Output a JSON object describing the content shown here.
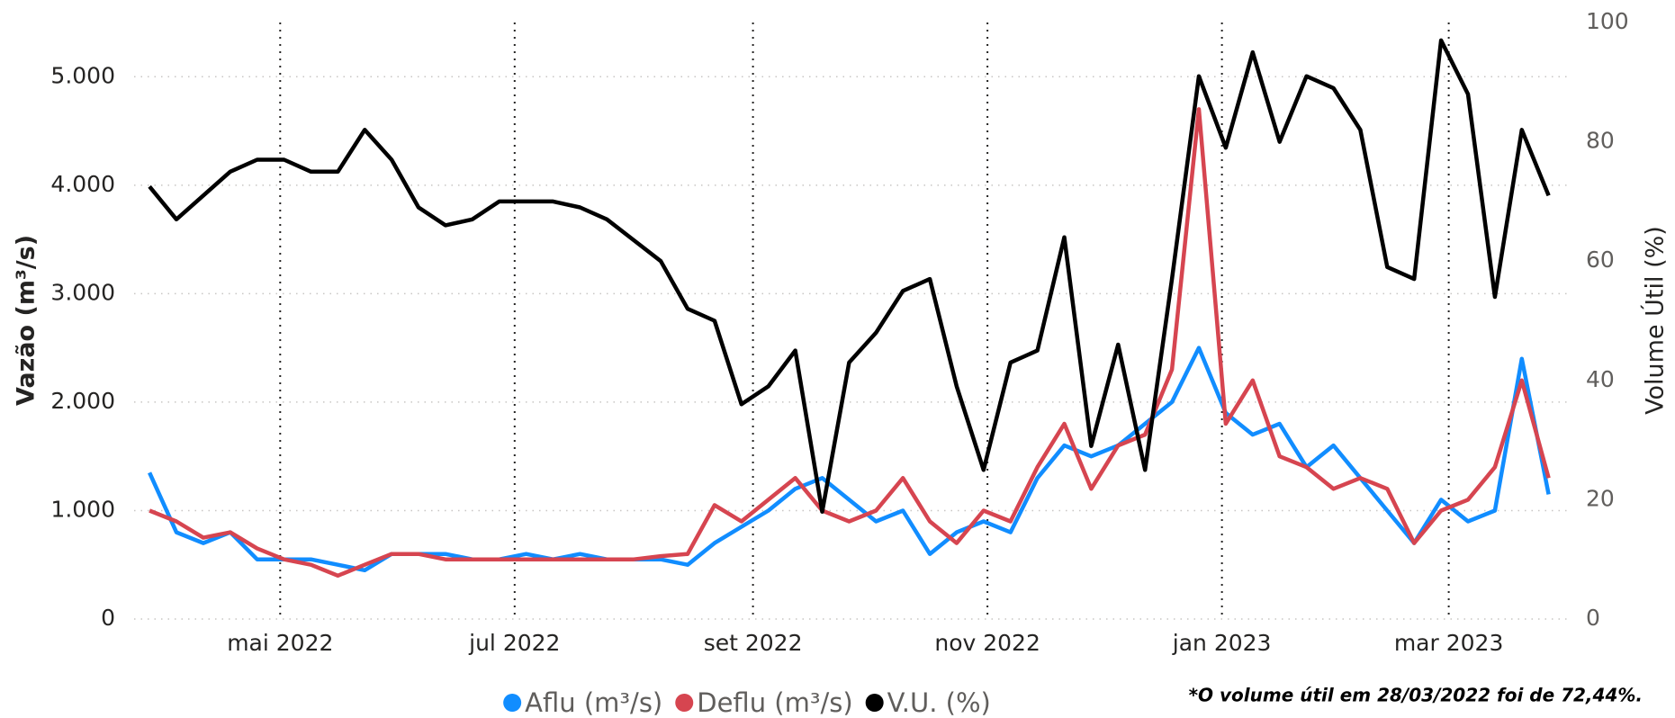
{
  "chart_data": {
    "type": "line",
    "y_label": "Vazão (m³/s)",
    "y2_label": "Volume Útil (%)",
    "annotation": "*O volume útil em 28/03/2022 foi de 72,44%.",
    "x": [
      "2022-03-28",
      "2022-04-04",
      "2022-04-11",
      "2022-04-18",
      "2022-04-25",
      "2022-05-02",
      "2022-05-09",
      "2022-05-16",
      "2022-05-23",
      "2022-05-30",
      "2022-06-06",
      "2022-06-13",
      "2022-06-20",
      "2022-06-27",
      "2022-07-04",
      "2022-07-11",
      "2022-07-18",
      "2022-07-25",
      "2022-08-01",
      "2022-08-08",
      "2022-08-15",
      "2022-08-22",
      "2022-08-29",
      "2022-09-05",
      "2022-09-12",
      "2022-09-19",
      "2022-09-26",
      "2022-10-03",
      "2022-10-10",
      "2022-10-17",
      "2022-10-24",
      "2022-10-31",
      "2022-11-07",
      "2022-11-14",
      "2022-11-21",
      "2022-11-28",
      "2022-12-05",
      "2022-12-12",
      "2022-12-19",
      "2022-12-26",
      "2023-01-02",
      "2023-01-09",
      "2023-01-16",
      "2023-01-23",
      "2023-01-30",
      "2023-02-06",
      "2023-02-13",
      "2023-02-20",
      "2023-02-27",
      "2023-03-06",
      "2023-03-13",
      "2023-03-20",
      "2023-03-27"
    ],
    "series": [
      {
        "name": "Aflu (m³/s)",
        "color": "#118dff",
        "values": [
          1350,
          800,
          700,
          800,
          550,
          550,
          550,
          500,
          450,
          600,
          600,
          600,
          550,
          550,
          600,
          550,
          600,
          550,
          550,
          550,
          500,
          700,
          850,
          1000,
          1200,
          1300,
          1100,
          900,
          1000,
          600,
          800,
          900,
          800,
          1300,
          1600,
          1500,
          1600,
          1800,
          2000,
          2500,
          1900,
          1700,
          1800,
          1400,
          1600,
          1300,
          1000,
          700,
          1100,
          900,
          1000,
          2400,
          1150
        ]
      },
      {
        "name": "Deflu (m³/s)",
        "color": "#d64550",
        "values": [
          1000,
          900,
          750,
          800,
          650,
          550,
          500,
          400,
          500,
          600,
          600,
          550,
          550,
          550,
          550,
          550,
          550,
          550,
          550,
          580,
          600,
          1050,
          900,
          1100,
          1300,
          1000,
          900,
          1000,
          1300,
          900,
          700,
          1000,
          900,
          1400,
          1800,
          1200,
          1600,
          1700,
          2300,
          4700,
          1800,
          2200,
          1500,
          1400,
          1200,
          1300,
          1200,
          700,
          1000,
          1100,
          1400,
          2200,
          1300
        ]
      },
      {
        "name": "V.U. (%)",
        "color": "#000000",
        "axis": "y2",
        "values": [
          72.5,
          67,
          71,
          75,
          77,
          77,
          75,
          75,
          82,
          77,
          69,
          66,
          67,
          70,
          70,
          70,
          69,
          67,
          63.5,
          60,
          52,
          50,
          36,
          39,
          45,
          18,
          43,
          48,
          55,
          57,
          39,
          25,
          43,
          45,
          64,
          29,
          46,
          25,
          57,
          91,
          79,
          95,
          80,
          91,
          89,
          82,
          59,
          57,
          97,
          88,
          54,
          82,
          71
        ]
      }
    ],
    "xlim": [
      "2022-03-24",
      "2023-04-01"
    ],
    "xticks": [
      {
        "value": "2022-05-01",
        "label": "mai 2022"
      },
      {
        "value": "2022-07-01",
        "label": "jul 2022"
      },
      {
        "value": "2022-09-01",
        "label": "set 2022"
      },
      {
        "value": "2022-11-01",
        "label": "nov 2022"
      },
      {
        "value": "2023-01-01",
        "label": "jan 2023"
      },
      {
        "value": "2023-03-01",
        "label": "mar 2023"
      }
    ],
    "ylim": [
      0,
      5500
    ],
    "yticks": [
      0,
      {
        "value": 1000,
        "label": "1.000"
      },
      {
        "value": 2000,
        "label": "2.000"
      },
      {
        "value": 3000,
        "label": "3.000"
      },
      {
        "value": 4000,
        "label": "4.000"
      },
      {
        "value": 5000,
        "label": "5.000"
      }
    ],
    "y2lim": [
      0,
      100
    ],
    "y2ticks": [
      0,
      20,
      40,
      60,
      80,
      100
    ],
    "grid": true,
    "legend": "bottom"
  }
}
